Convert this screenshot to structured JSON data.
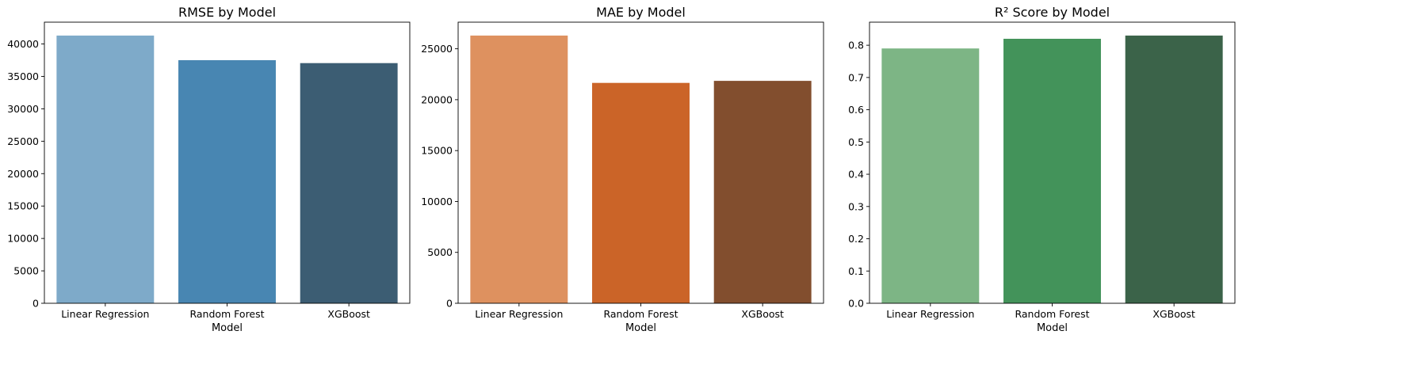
{
  "chart_data": [
    {
      "type": "bar",
      "title": "RMSE by Model",
      "xlabel": "Model",
      "ylabel": "",
      "categories": [
        "Linear Regression",
        "Random Forest",
        "XGBoost"
      ],
      "values": [
        41300,
        37500,
        37050
      ],
      "ylim": [
        0,
        43365
      ],
      "yticks": [
        0,
        5000,
        10000,
        15000,
        20000,
        25000,
        30000,
        35000,
        40000
      ],
      "ytick_labels": [
        "0",
        "5000",
        "10000",
        "15000",
        "20000",
        "25000",
        "30000",
        "35000",
        "40000"
      ],
      "colors": [
        "#7eaac9",
        "#4886b2",
        "#3c5d73"
      ],
      "grid": false
    },
    {
      "type": "bar",
      "title": "MAE by Model",
      "xlabel": "Model",
      "ylabel": "",
      "categories": [
        "Linear Regression",
        "Random Forest",
        "XGBoost"
      ],
      "values": [
        26300,
        21650,
        21850
      ],
      "ylim": [
        0,
        27615
      ],
      "yticks": [
        0,
        5000,
        10000,
        15000,
        20000,
        25000
      ],
      "ytick_labels": [
        "0",
        "5000",
        "10000",
        "15000",
        "20000",
        "25000"
      ],
      "colors": [
        "#de915f",
        "#cb6428",
        "#824e2e"
      ],
      "grid": false
    },
    {
      "type": "bar",
      "title": "R² Score by Model",
      "xlabel": "Model",
      "ylabel": "",
      "categories": [
        "Linear Regression",
        "Random Forest",
        "XGBoost"
      ],
      "values": [
        0.79,
        0.82,
        0.83
      ],
      "ylim": [
        0,
        0.8715
      ],
      "yticks": [
        0.0,
        0.1,
        0.2,
        0.3,
        0.4,
        0.5,
        0.6,
        0.7,
        0.8
      ],
      "ytick_labels": [
        "0.0",
        "0.1",
        "0.2",
        "0.3",
        "0.4",
        "0.5",
        "0.6",
        "0.7",
        "0.8"
      ],
      "colors": [
        "#7db585",
        "#43935a",
        "#3b6349"
      ],
      "grid": false
    }
  ]
}
